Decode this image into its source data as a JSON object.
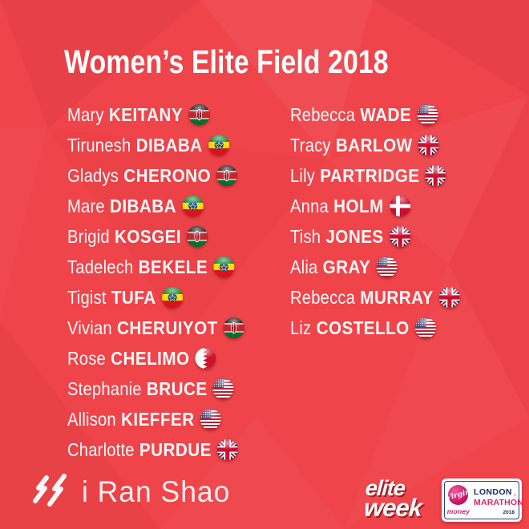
{
  "title": "Women’s Elite Field 2018",
  "athletes": {
    "left": [
      {
        "first": "Mary",
        "last": "KEITANY",
        "flag": "kenya"
      },
      {
        "first": "Tirunesh",
        "last": "DIBABA",
        "flag": "ethiopia"
      },
      {
        "first": "Gladys",
        "last": "CHERONO",
        "flag": "kenya"
      },
      {
        "first": "Mare",
        "last": "DIBABA",
        "flag": "ethiopia"
      },
      {
        "first": "Brigid",
        "last": "KOSGEI",
        "flag": "kenya"
      },
      {
        "first": "Tadelech",
        "last": "BEKELE",
        "flag": "ethiopia"
      },
      {
        "first": "Tigist",
        "last": "TUFA",
        "flag": "ethiopia"
      },
      {
        "first": "Vivian",
        "last": "CHERUIYOT",
        "flag": "kenya"
      },
      {
        "first": "Rose",
        "last": "CHELIMO",
        "flag": "bahrain"
      },
      {
        "first": "Stephanie",
        "last": "BRUCE",
        "flag": "usa"
      },
      {
        "first": "Allison",
        "last": "KIEFFER",
        "flag": "usa"
      },
      {
        "first": "Charlotte",
        "last": "PURDUE",
        "flag": "uk"
      }
    ],
    "right": [
      {
        "first": "Rebecca",
        "last": "WADE",
        "flag": "usa"
      },
      {
        "first": "Tracy",
        "last": "BARLOW",
        "flag": "uk"
      },
      {
        "first": "Lily",
        "last": "PARTRIDGE",
        "flag": "uk"
      },
      {
        "first": "Anna",
        "last": "HOLM",
        "flag": "denmark"
      },
      {
        "first": "Tish",
        "last": "JONES",
        "flag": "uk"
      },
      {
        "first": "Alia",
        "last": "GRAY",
        "flag": "usa"
      },
      {
        "first": "Rebecca",
        "last": "MURRAY",
        "flag": "uk"
      },
      {
        "first": "Liz",
        "last": "COSTELLO",
        "flag": "usa"
      }
    ]
  },
  "footer": {
    "iranshao_label": "i Ran Shao",
    "eliteweek_line1": "elite",
    "eliteweek_line2": "week",
    "marathon": {
      "virgin": "Virgin",
      "money": "money",
      "london": "LONDON",
      "marathon": "MARATHON",
      "year": "2018"
    }
  },
  "colors": {
    "background": "#ef444a",
    "text_white": "#ffffff",
    "elite_shadow": "#9c1f27",
    "london_navy": "#1b2d6b",
    "marathon_red": "#e0255c",
    "virgin_magenta": "#c40e63"
  }
}
